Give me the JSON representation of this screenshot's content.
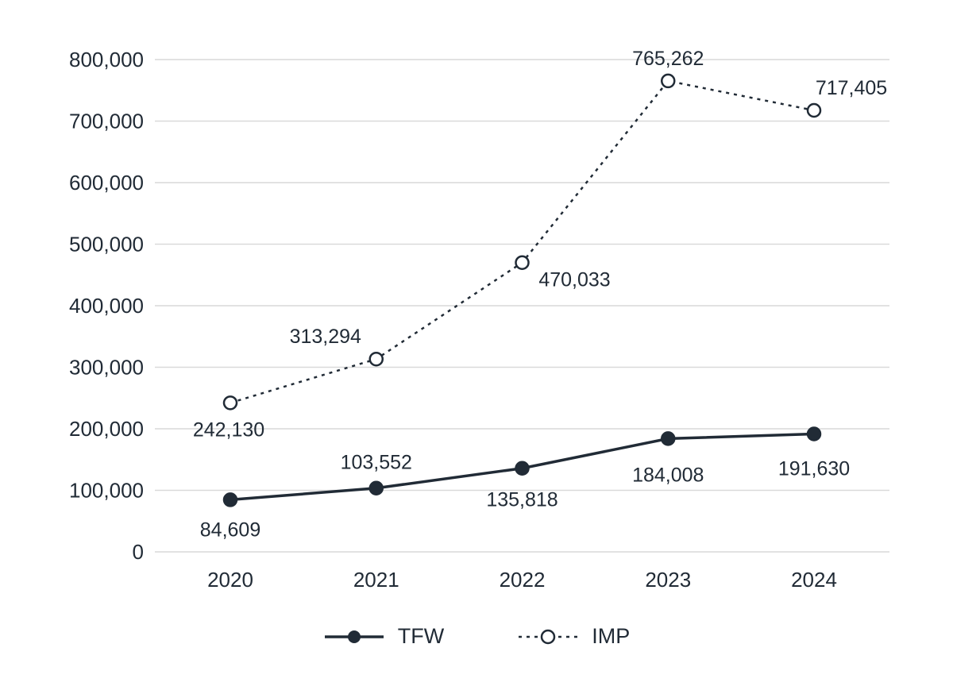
{
  "chart_data": {
    "type": "line",
    "categories": [
      "2020",
      "2021",
      "2022",
      "2023",
      "2024"
    ],
    "series": [
      {
        "name": "TFW",
        "values": [
          84609,
          103552,
          135818,
          184008,
          191630
        ],
        "labels": [
          "84,609",
          "103,552",
          "135,818",
          "184,008",
          "191,630"
        ],
        "style": "solid",
        "marker": "filled",
        "color": "#212b36"
      },
      {
        "name": "IMP",
        "values": [
          242130,
          313294,
          470033,
          765262,
          717405
        ],
        "labels": [
          "242,130",
          "313,294",
          "470,033",
          "765,262",
          "717,405"
        ],
        "style": "dashed",
        "marker": "open",
        "color": "#212b36"
      }
    ],
    "title": "",
    "xlabel": "",
    "ylabel": "",
    "ylim": [
      0,
      800000
    ],
    "yticks": [
      0,
      100000,
      200000,
      300000,
      400000,
      500000,
      600000,
      700000,
      800000
    ],
    "ytick_labels": [
      "0",
      "100,000",
      "200,000",
      "300,000",
      "400,000",
      "500,000",
      "600,000",
      "700,000",
      "800,000"
    ],
    "grid": "horizontal",
    "grid_color": "#d9d9d9",
    "text_color": "#212b36",
    "background": "#ffffff",
    "legend_position": "bottom",
    "data_labels": true
  }
}
